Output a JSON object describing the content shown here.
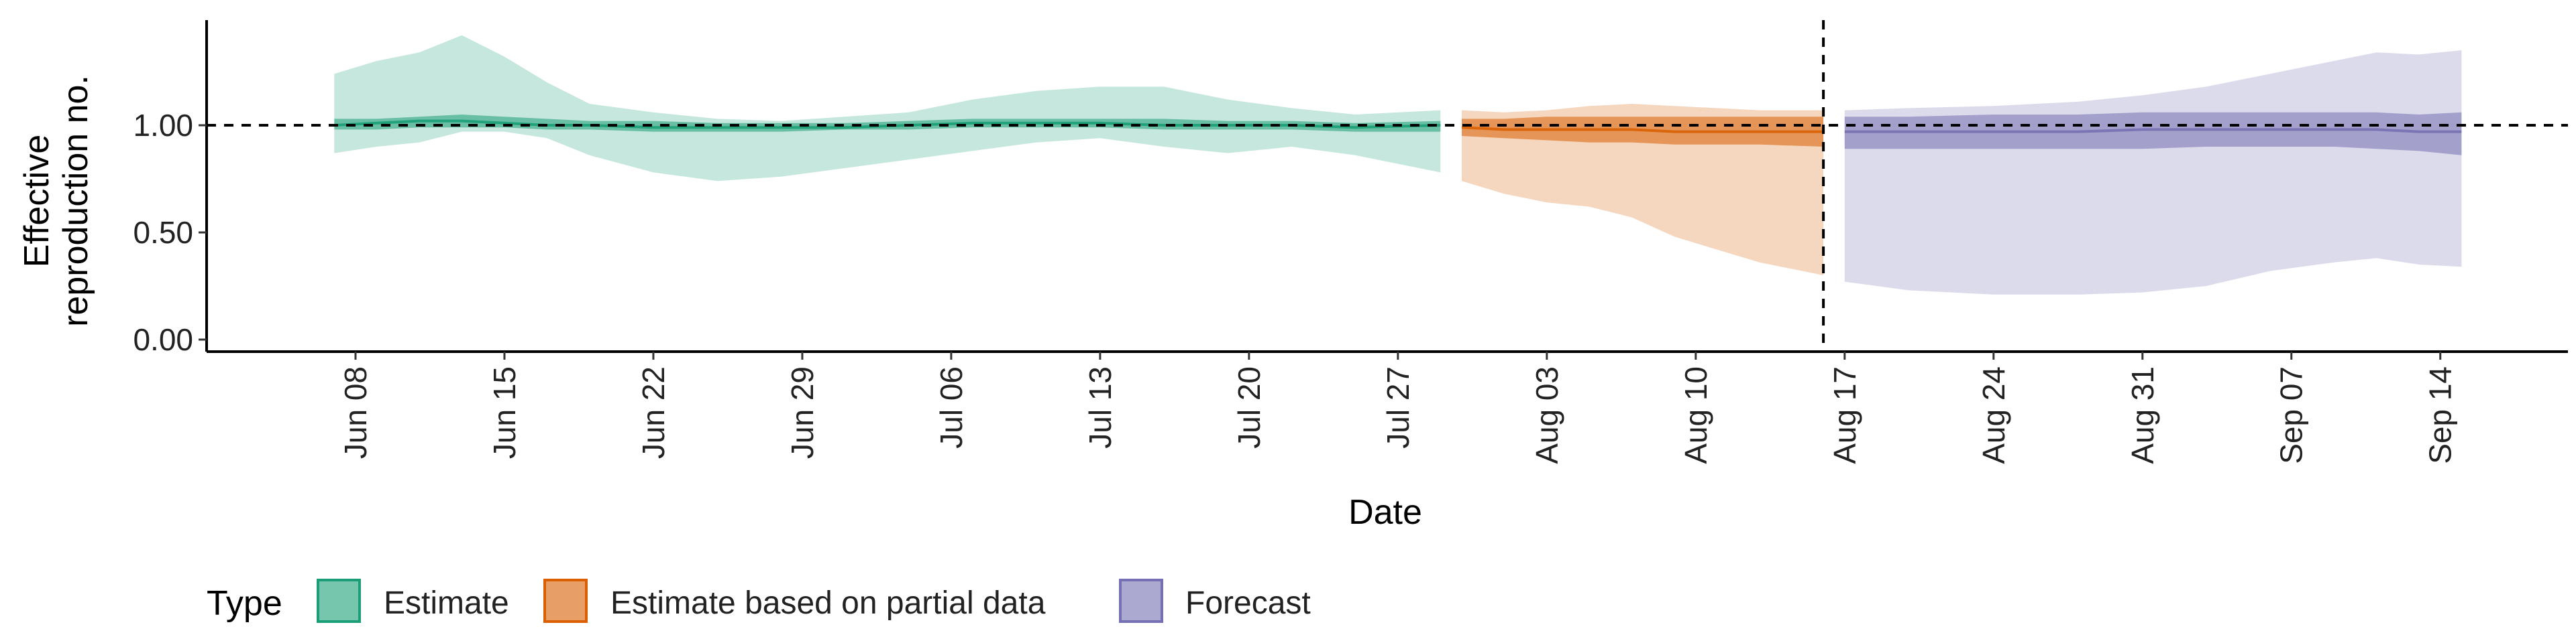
{
  "chart_data": {
    "type": "area",
    "title": "",
    "xlabel": "Date",
    "ylabel": "Effective reproduction no.",
    "ylabel_lines": [
      "Effective",
      "reproduction no."
    ],
    "ylim": [
      0,
      1.5
    ],
    "xlim": [
      "2020-06-01",
      "2020-09-20"
    ],
    "y_ticks": [
      "0.00",
      "0.50",
      "1.00"
    ],
    "x_ticks": [
      "Jun 08",
      "Jun 15",
      "Jun 22",
      "Jun 29",
      "Jul 06",
      "Jul 13",
      "Jul 20",
      "Jul 27",
      "Aug 03",
      "Aug 10",
      "Aug 17",
      "Aug 24",
      "Aug 31",
      "Sep 07",
      "Sep 14"
    ],
    "reference_line_y": 1.0,
    "reference_date": "2020-08-16",
    "grid": false,
    "legend": {
      "title": "Type",
      "position": "bottom",
      "items": [
        "Estimate",
        "Estimate based on partial data",
        "Forecast"
      ]
    },
    "colors": {
      "Estimate": "#1b9e77",
      "Estimate based on partial data": "#d95f02",
      "Forecast": "#7570b3"
    },
    "series": [
      {
        "name": "Estimate",
        "x": [
          "2020-06-07",
          "2020-06-09",
          "2020-06-11",
          "2020-06-13",
          "2020-06-15",
          "2020-06-17",
          "2020-06-19",
          "2020-06-22",
          "2020-06-25",
          "2020-06-28",
          "2020-07-01",
          "2020-07-04",
          "2020-07-07",
          "2020-07-10",
          "2020-07-13",
          "2020-07-16",
          "2020-07-19",
          "2020-07-22",
          "2020-07-25",
          "2020-07-29"
        ],
        "upper90": [
          1.24,
          1.3,
          1.34,
          1.42,
          1.32,
          1.2,
          1.1,
          1.06,
          1.03,
          1.02,
          1.04,
          1.06,
          1.12,
          1.16,
          1.18,
          1.18,
          1.12,
          1.08,
          1.05,
          1.07
        ],
        "lower90": [
          0.87,
          0.9,
          0.92,
          0.97,
          0.97,
          0.94,
          0.86,
          0.78,
          0.74,
          0.76,
          0.8,
          0.84,
          0.88,
          0.92,
          0.94,
          0.9,
          0.87,
          0.9,
          0.86,
          0.78
        ],
        "upper50": [
          1.03,
          1.03,
          1.04,
          1.05,
          1.04,
          1.03,
          1.02,
          1.02,
          1.01,
          1.01,
          1.01,
          1.02,
          1.03,
          1.03,
          1.03,
          1.03,
          1.02,
          1.02,
          1.01,
          1.02
        ],
        "lower50": [
          0.98,
          0.98,
          0.99,
          0.99,
          0.99,
          0.98,
          0.98,
          0.97,
          0.97,
          0.97,
          0.98,
          0.98,
          0.99,
          0.99,
          0.99,
          0.98,
          0.98,
          0.98,
          0.97,
          0.97
        ],
        "median": [
          1.0,
          1.01,
          1.02,
          1.02,
          1.01,
          1.0,
          1.0,
          0.99,
          0.99,
          0.99,
          0.99,
          1.0,
          1.01,
          1.01,
          1.01,
          1.0,
          1.0,
          1.0,
          0.99,
          1.0
        ]
      },
      {
        "name": "Estimate based on partial data",
        "x": [
          "2020-07-30",
          "2020-08-01",
          "2020-08-03",
          "2020-08-05",
          "2020-08-07",
          "2020-08-09",
          "2020-08-11",
          "2020-08-13",
          "2020-08-16"
        ],
        "upper90": [
          1.07,
          1.06,
          1.07,
          1.09,
          1.1,
          1.09,
          1.08,
          1.07,
          1.07
        ],
        "lower90": [
          0.74,
          0.68,
          0.64,
          0.62,
          0.57,
          0.48,
          0.42,
          0.36,
          0.3
        ],
        "upper50": [
          1.03,
          1.03,
          1.04,
          1.04,
          1.04,
          1.04,
          1.04,
          1.04,
          1.04
        ],
        "lower50": [
          0.95,
          0.94,
          0.93,
          0.92,
          0.92,
          0.91,
          0.91,
          0.91,
          0.9
        ],
        "median": [
          0.99,
          0.98,
          0.98,
          0.98,
          0.98,
          0.97,
          0.97,
          0.97,
          0.97
        ]
      },
      {
        "name": "Forecast",
        "x": [
          "2020-08-17",
          "2020-08-20",
          "2020-08-24",
          "2020-08-28",
          "2020-08-31",
          "2020-09-03",
          "2020-09-06",
          "2020-09-09",
          "2020-09-11",
          "2020-09-13",
          "2020-09-15"
        ],
        "upper90": [
          1.07,
          1.08,
          1.09,
          1.11,
          1.14,
          1.18,
          1.24,
          1.3,
          1.34,
          1.33,
          1.35
        ],
        "lower90": [
          0.27,
          0.23,
          0.21,
          0.21,
          0.22,
          0.25,
          0.32,
          0.36,
          0.38,
          0.35,
          0.34
        ],
        "upper50": [
          1.04,
          1.04,
          1.05,
          1.05,
          1.06,
          1.06,
          1.06,
          1.06,
          1.06,
          1.05,
          1.06
        ],
        "lower50": [
          0.89,
          0.89,
          0.89,
          0.89,
          0.89,
          0.9,
          0.9,
          0.9,
          0.89,
          0.88,
          0.86
        ],
        "median": [
          0.97,
          0.97,
          0.97,
          0.97,
          0.98,
          0.98,
          0.98,
          0.98,
          0.98,
          0.97,
          0.97
        ]
      }
    ]
  }
}
